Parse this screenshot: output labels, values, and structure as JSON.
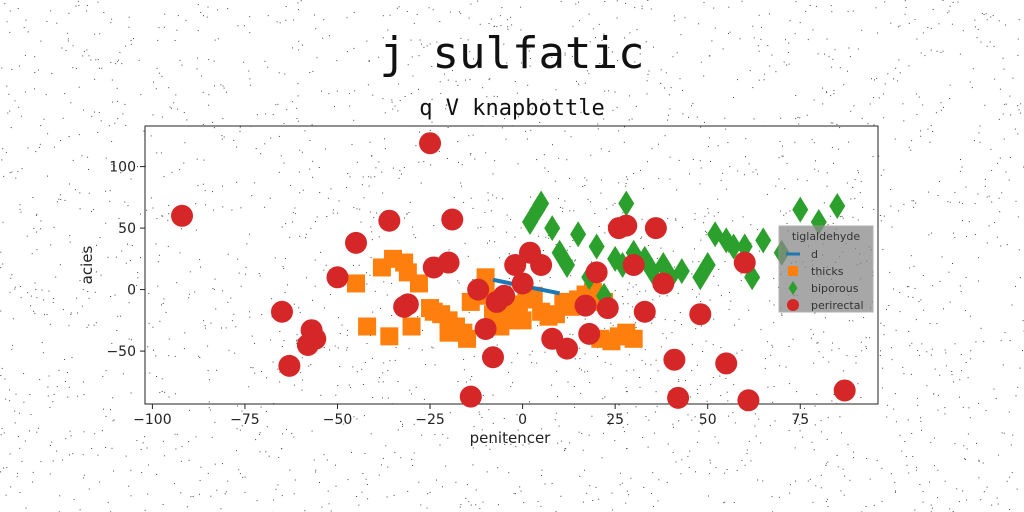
{
  "chart_data": {
    "type": "scatter",
    "title": "j sulfatic",
    "subtitle": "q V knapbottle",
    "xlabel": "penitencer",
    "ylabel": "acies",
    "xlim": [
      -102,
      96
    ],
    "ylim": [
      -93,
      133
    ],
    "xticks": [
      -100,
      -75,
      -50,
      -25,
      0,
      25,
      50,
      75
    ],
    "xtick_labels": [
      "−100",
      "−75",
      "−50",
      "−25",
      "0",
      "25",
      "50",
      "75"
    ],
    "yticks": [
      -50,
      0,
      50,
      100
    ],
    "ytick_labels": [
      "−50",
      "0",
      "50",
      "100"
    ],
    "grid": false,
    "legend": {
      "title": "tiglaldehyde",
      "placement": "right"
    },
    "series": [
      {
        "name": "d",
        "marker": "line",
        "color": "#1f77b4",
        "x": [
          -8,
          0,
          5,
          10
        ],
        "y": [
          8,
          3,
          0,
          -3
        ]
      },
      {
        "name": "thicks",
        "marker": "square",
        "color": "#ff7f0e",
        "x": [
          -45,
          -38,
          -35,
          -32,
          -31,
          -28,
          -25,
          -24,
          -22,
          -20,
          -18,
          -16,
          -15,
          -14,
          -12,
          -10,
          -8,
          -6,
          -5,
          -3,
          -1,
          1,
          3,
          5,
          7,
          9,
          11,
          13,
          15,
          17,
          19,
          21,
          24,
          26,
          28,
          30,
          -42,
          -36,
          -30,
          -20,
          -10,
          0,
          12,
          22
        ],
        "y": [
          5,
          18,
          25,
          22,
          14,
          5,
          -15,
          -18,
          -20,
          -25,
          -30,
          -35,
          -40,
          -10,
          -5,
          10,
          -20,
          -30,
          -15,
          -25,
          -12,
          -8,
          -5,
          -18,
          -22,
          -20,
          -10,
          -14,
          -8,
          -4,
          -2,
          -40,
          -42,
          -38,
          -35,
          -40,
          -30,
          -38,
          -30,
          -35,
          0,
          -25,
          -12,
          -10
        ]
      },
      {
        "name": "biporous",
        "marker": "diamond",
        "color": "#2ca02c",
        "x": [
          2,
          5,
          4,
          8,
          10,
          12,
          15,
          18,
          20,
          22,
          25,
          27,
          28,
          30,
          33,
          35,
          38,
          40,
          43,
          48,
          50,
          52,
          55,
          57,
          60,
          62,
          65,
          70,
          75,
          80,
          85
        ],
        "y": [
          55,
          70,
          65,
          50,
          30,
          20,
          45,
          10,
          35,
          -5,
          25,
          20,
          70,
          30,
          25,
          15,
          20,
          10,
          15,
          10,
          20,
          45,
          40,
          35,
          35,
          10,
          40,
          30,
          65,
          55,
          68
        ]
      },
      {
        "name": "perirectal",
        "marker": "circle",
        "color": "#d62728",
        "x": [
          -92,
          -65,
          -63,
          -58,
          -57,
          -56,
          -50,
          -45,
          -36,
          -32,
          -31,
          -25,
          -24,
          -20,
          -19,
          -14,
          -12,
          -10,
          -8,
          -7,
          -5,
          -2,
          0,
          2,
          5,
          8,
          12,
          17,
          18,
          20,
          23,
          26,
          28,
          30,
          33,
          36,
          38,
          41,
          42,
          48,
          55,
          60,
          61,
          87
        ],
        "y": [
          60,
          -18,
          -62,
          -45,
          -33,
          -40,
          10,
          38,
          56,
          -14,
          -12,
          119,
          18,
          22,
          57,
          -87,
          0,
          -32,
          -55,
          -10,
          -5,
          20,
          5,
          30,
          20,
          -40,
          -48,
          -13,
          -36,
          14,
          -15,
          50,
          52,
          20,
          -18,
          50,
          5,
          -57,
          -88,
          -20,
          -60,
          22,
          -90,
          -82
        ]
      }
    ]
  }
}
